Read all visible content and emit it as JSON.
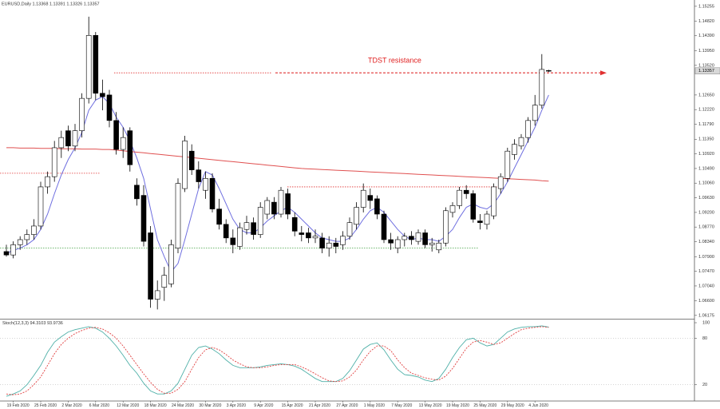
{
  "chart_data": {
    "type": "candlestick",
    "title": "EURUSD,Daily 1.13368 1.13391 1.13326 1.13357",
    "annotation": "TDST resistance",
    "last_price": 1.13357,
    "categories": [
      null,
      "19 Feb 2020",
      null,
      null,
      null,
      "25 Feb 2020",
      null,
      null,
      null,
      "2 Mar 2020",
      null,
      null,
      null,
      "6 Mar 2020",
      null,
      null,
      null,
      "12 Mar 2020",
      null,
      null,
      null,
      "18 Mar 2020",
      null,
      null,
      null,
      "24 Mar 2020",
      null,
      null,
      null,
      "30 Mar 2020",
      null,
      null,
      null,
      "3 Apr 2020",
      null,
      null,
      null,
      "9 Apr 2020",
      null,
      null,
      null,
      "15 Apr 2020",
      null,
      null,
      null,
      "21 Apr 2020",
      null,
      null,
      null,
      "27 Apr 2020",
      null,
      null,
      null,
      "1 May 2020",
      null,
      null,
      null,
      "7 May 2020",
      null,
      null,
      null,
      "13 May 2020",
      null,
      null,
      null,
      "19 May 2020",
      null,
      null,
      null,
      "25 May 2020",
      null,
      null,
      null,
      "29 May 2020",
      null,
      null,
      null,
      "4 Jun 2020",
      null,
      null
    ],
    "open": [
      1.0805,
      1.0795,
      1.0825,
      1.084,
      1.0855,
      1.088,
      1.0995,
      1.1025,
      1.111,
      1.116,
      1.1115,
      1.116,
      1.1255,
      1.144,
      1.127,
      1.1265,
      1.119,
      1.1105,
      1.116,
      1.1,
      1.097,
      1.086,
      1.0665,
      1.07,
      1.071,
      1.0815,
      1.099,
      1.11,
      1.1045,
      1.0985,
      1.102,
      1.093,
      1.0885,
      1.0845,
      1.082,
      1.087,
      1.089,
      1.0855,
      1.0915,
      1.095,
      1.0915,
      1.0975,
      1.0905,
      1.086,
      1.086,
      1.0845,
      1.0845,
      1.0815,
      1.083,
      1.0825,
      1.085,
      1.0885,
      1.0935,
      1.097,
      1.096,
      1.0915,
      1.084,
      1.0815,
      1.084,
      1.085,
      1.0835,
      1.086,
      1.0825,
      1.081,
      1.083,
      1.092,
      1.094,
      1.0985,
      1.0975,
      1.0895,
      1.0885,
      1.091,
      1.099,
      1.102,
      1.109,
      1.1115,
      1.114,
      1.119,
      1.1235,
      1.13368
    ],
    "high": [
      1.0825,
      1.0835,
      1.085,
      1.087,
      1.09,
      1.101,
      1.104,
      1.113,
      1.116,
      1.1175,
      1.118,
      1.127,
      1.1495,
      1.145,
      1.131,
      1.128,
      1.1215,
      1.117,
      1.117,
      1.102,
      1.1,
      1.088,
      1.072,
      1.076,
      1.084,
      1.102,
      1.1145,
      1.112,
      1.107,
      1.104,
      1.1035,
      1.096,
      1.09,
      1.087,
      1.089,
      1.091,
      1.0905,
      1.095,
      1.0965,
      1.0965,
      1.0995,
      1.099,
      1.092,
      1.088,
      1.0875,
      1.087,
      1.086,
      1.085,
      1.0845,
      1.0865,
      1.0905,
      1.095,
      1.1005,
      1.099,
      1.097,
      1.0925,
      1.086,
      1.085,
      1.086,
      1.0865,
      1.087,
      1.087,
      1.0845,
      1.084,
      1.0935,
      1.095,
      1.0995,
      1.1,
      1.0985,
      1.0915,
      1.0925,
      1.1005,
      1.1035,
      1.111,
      1.1135,
      1.115,
      1.12,
      1.1265,
      1.1385,
      1.13391
    ],
    "low": [
      1.079,
      1.0785,
      1.081,
      1.0825,
      1.084,
      1.087,
      1.0975,
      1.101,
      1.108,
      1.11,
      1.11,
      1.114,
      1.124,
      1.125,
      1.122,
      1.117,
      1.109,
      1.108,
      1.104,
      1.094,
      1.082,
      1.064,
      1.0635,
      1.066,
      1.07,
      1.08,
      1.098,
      1.103,
      1.099,
      1.096,
      1.092,
      1.087,
      1.083,
      1.08,
      1.081,
      1.0855,
      1.084,
      1.0845,
      1.09,
      1.09,
      1.0905,
      1.09,
      1.085,
      1.0835,
      1.083,
      1.083,
      1.08,
      1.079,
      1.08,
      1.081,
      1.084,
      1.087,
      1.092,
      1.093,
      1.09,
      1.083,
      1.081,
      1.08,
      1.082,
      1.0825,
      1.0825,
      1.0815,
      1.0805,
      1.08,
      1.082,
      1.0905,
      1.093,
      1.096,
      1.089,
      1.087,
      1.087,
      1.09,
      1.0975,
      1.101,
      1.1075,
      1.1105,
      1.1125,
      1.1175,
      1.1225,
      1.13326
    ],
    "close": [
      1.0795,
      1.0825,
      1.084,
      1.0855,
      1.088,
      1.0995,
      1.1025,
      1.111,
      1.114,
      1.1115,
      1.116,
      1.1255,
      1.144,
      1.127,
      1.126,
      1.119,
      1.1105,
      1.114,
      1.106,
      1.096,
      1.0835,
      1.0665,
      1.069,
      1.0735,
      1.0825,
      1.1005,
      1.113,
      1.1045,
      1.101,
      1.102,
      1.093,
      1.0885,
      1.0845,
      1.0825,
      1.0875,
      1.089,
      1.0855,
      1.0935,
      1.0955,
      1.0915,
      1.0985,
      1.0915,
      1.0865,
      1.0855,
      1.0845,
      1.085,
      1.0815,
      1.083,
      1.082,
      1.085,
      1.089,
      1.0935,
      1.0985,
      1.0955,
      1.0915,
      1.084,
      1.083,
      1.084,
      1.085,
      1.084,
      1.086,
      1.0825,
      1.083,
      1.083,
      1.0925,
      1.094,
      1.0985,
      1.0975,
      1.09,
      1.089,
      1.0915,
      1.0995,
      1.1025,
      1.11,
      1.112,
      1.114,
      1.119,
      1.1235,
      1.134,
      1.13357
    ],
    "bull_color": "#ffffff",
    "bear_color": "#000000",
    "ylim": [
      1.061,
      1.1544
    ],
    "yticks": [
      1.15255,
      {
        "value": 1.1482,
        "label": "1.14820"
      },
      {
        "value": 1.1439,
        "label": "1.14390"
      },
      {
        "value": 1.1395,
        "label": "1.13950"
      },
      {
        "value": 1.1352,
        "label": "1.13520"
      },
      {
        "value": 1.1265,
        "label": "1.12650"
      },
      {
        "value": 1.1222,
        "label": "1.12220"
      },
      {
        "value": 1.1179,
        "label": "1.11790"
      },
      {
        "value": 1.1135,
        "label": "1.11350"
      },
      {
        "value": 1.1092,
        "label": "1.10920"
      },
      {
        "value": 1.1049,
        "label": "1.10490"
      },
      {
        "value": 1.1006,
        "label": "1.10060"
      },
      {
        "value": 1.0963,
        "label": "1.09630"
      },
      {
        "value": 1.092,
        "label": "1.09200"
      },
      {
        "value": 1.0877,
        "label": "1.08770"
      },
      {
        "value": 1.0834,
        "label": "1.08340"
      },
      {
        "value": 1.079,
        "label": "1.07900"
      },
      {
        "value": 1.0747,
        "label": "1.07470"
      },
      {
        "value": 1.0704,
        "label": "1.07040"
      },
      {
        "value": 1.066,
        "label": "1.06600"
      },
      1.06175
    ],
    "lines": [
      {
        "color": "#6f6fe0",
        "values": [
          1.08,
          1.0808,
          1.0815,
          1.0825,
          1.084,
          1.087,
          1.0915,
          1.0975,
          1.103,
          1.1075,
          1.111,
          1.1155,
          1.122,
          1.125,
          1.126,
          1.124,
          1.12,
          1.117,
          1.113,
          1.108,
          1.102,
          1.093,
          1.084,
          1.079,
          1.0745,
          1.077,
          1.084,
          1.0915,
          1.099,
          1.104,
          1.103,
          1.099,
          1.0945,
          1.09,
          1.087,
          1.086,
          1.086,
          1.0875,
          1.0895,
          1.091,
          1.0925,
          1.0935,
          1.092,
          1.09,
          1.088,
          1.086,
          1.0845,
          1.084,
          1.0835,
          1.0835,
          1.0845,
          1.087,
          1.09,
          1.0925,
          1.0935,
          1.092,
          1.0895,
          1.087,
          1.085,
          1.084,
          1.0845,
          1.084,
          1.084,
          1.0835,
          1.085,
          1.087,
          1.0905,
          1.0935,
          1.0945,
          1.0935,
          1.093,
          1.0945,
          1.0975,
          1.101,
          1.105,
          1.109,
          1.113,
          1.117,
          1.122,
          1.1265
        ]
      },
      {
        "color": "#e05050",
        "values": [
          1.111,
          1.111,
          1.1109,
          1.1109,
          1.1109,
          1.1108,
          1.1108,
          1.1108,
          1.1107,
          1.1107,
          1.1107,
          1.1106,
          1.1106,
          1.1106,
          1.1105,
          1.1105,
          1.1103,
          1.1101,
          1.1099,
          1.1097,
          1.1095,
          1.1093,
          1.1091,
          1.1089,
          1.1087,
          1.1085,
          1.1083,
          1.1081,
          1.1079,
          1.1077,
          1.1075,
          1.1073,
          1.1071,
          1.1069,
          1.1067,
          1.1065,
          1.1063,
          1.1061,
          1.1059,
          1.1057,
          1.1055,
          1.1053,
          1.1051,
          1.1049,
          1.1048,
          1.1047,
          1.1046,
          1.1045,
          1.1044,
          1.1043,
          1.1042,
          1.1041,
          1.104,
          1.1039,
          1.1038,
          1.1037,
          1.1036,
          1.1035,
          1.1034,
          1.1033,
          1.1032,
          1.1031,
          1.103,
          1.1029,
          1.1028,
          1.1027,
          1.1026,
          1.1025,
          1.1024,
          1.1023,
          1.1022,
          1.1021,
          1.102,
          1.1019,
          1.1018,
          1.1017,
          1.1016,
          1.1015,
          1.1013,
          1.1012
        ]
      }
    ],
    "levels": [
      {
        "value": 1.133,
        "color": "#e03030"
      },
      {
        "value": 1.1035,
        "color": "#e03030"
      },
      {
        "value": 1.0995,
        "color": "#e03030"
      },
      {
        "value": 1.0815,
        "color": "#40a040"
      }
    ],
    "indicator": {
      "title": "Stoch(12,3,3) 94.3103 93.9736",
      "ylim": [
        0,
        100
      ],
      "yticks": [
        100,
        80,
        20
      ],
      "series": [
        {
          "color": "#4fb0a8",
          "values": [
            5,
            8,
            12,
            20,
            32,
            45,
            62,
            75,
            82,
            88,
            91,
            93,
            95,
            93,
            88,
            80,
            70,
            58,
            45,
            35,
            22,
            12,
            8,
            8,
            12,
            22,
            40,
            58,
            68,
            70,
            66,
            60,
            52,
            45,
            42,
            42,
            42,
            43,
            45,
            46,
            47,
            46,
            44,
            40,
            34,
            28,
            24,
            24,
            24,
            28,
            38,
            52,
            66,
            72,
            74,
            65,
            52,
            40,
            33,
            32,
            30,
            26,
            24,
            28,
            40,
            55,
            68,
            78,
            80,
            74,
            70,
            72,
            80,
            88,
            92,
            94,
            95,
            95,
            96,
            94.3103
          ]
        },
        {
          "color": "#e04040",
          "values": [
            8,
            7,
            8,
            12,
            20,
            30,
            45,
            60,
            72,
            80,
            86,
            90,
            93,
            94,
            92,
            87,
            80,
            70,
            58,
            46,
            34,
            23,
            14,
            9,
            9,
            14,
            24,
            40,
            55,
            65,
            68,
            65,
            59,
            52,
            47,
            43,
            42,
            42,
            43,
            45,
            46,
            46,
            46,
            43,
            39,
            34,
            29,
            25,
            24,
            25,
            30,
            39,
            52,
            63,
            70,
            70,
            64,
            52,
            42,
            35,
            32,
            29,
            27,
            26,
            31,
            41,
            54,
            67,
            75,
            77,
            75,
            72,
            74,
            80,
            86,
            91,
            93,
            94,
            95,
            93.9736
          ]
        }
      ]
    }
  }
}
